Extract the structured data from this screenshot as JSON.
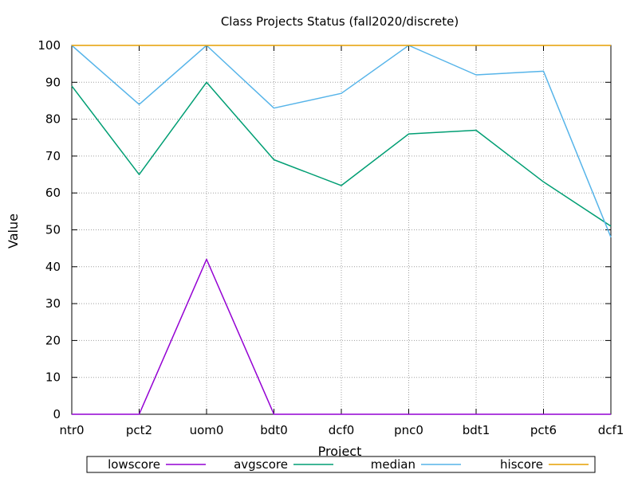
{
  "chart_data": {
    "type": "line",
    "title": "Class Projects Status (fall2020/discrete)",
    "xlabel": "Project",
    "ylabel": "Value",
    "ylim": [
      0,
      100
    ],
    "yticks": [
      0,
      10,
      20,
      30,
      40,
      50,
      60,
      70,
      80,
      90,
      100
    ],
    "categories": [
      "ntr0",
      "pct2",
      "uom0",
      "bdt0",
      "dcf0",
      "pnc0",
      "bdt1",
      "pct6",
      "dcf1"
    ],
    "grid": true,
    "legend_position": "bottom",
    "series": [
      {
        "name": "lowscore",
        "color": "#9400d3",
        "values": [
          0,
          0,
          42,
          0,
          0,
          0,
          0,
          0,
          0
        ]
      },
      {
        "name": "avgscore",
        "color": "#009e73",
        "values": [
          89,
          65,
          90,
          69,
          62,
          76,
          77,
          63,
          51
        ]
      },
      {
        "name": "median",
        "color": "#56b4e9",
        "values": [
          100,
          84,
          100,
          83,
          87,
          100,
          92,
          93,
          48
        ]
      },
      {
        "name": "hiscore",
        "color": "#e69f00",
        "values": [
          100,
          100,
          100,
          100,
          100,
          100,
          100,
          100,
          100
        ]
      }
    ]
  }
}
